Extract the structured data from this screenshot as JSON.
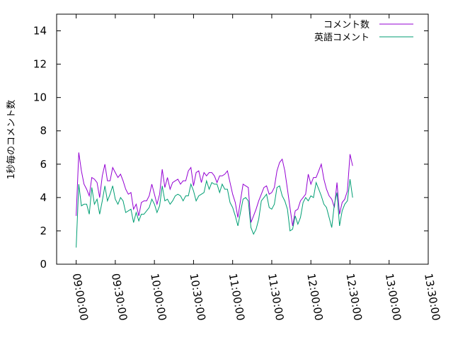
{
  "chart_data": {
    "type": "line",
    "ylabel": "1秒毎のコメント数",
    "xlabel": "",
    "ylim": [
      0,
      15
    ],
    "yticks": [
      0,
      2,
      4,
      6,
      8,
      10,
      12,
      14
    ],
    "x_range_seconds": [
      -900,
      16200
    ],
    "xticks": [
      {
        "t": 0,
        "label": "09:00:00"
      },
      {
        "t": 1800,
        "label": "09:30:00"
      },
      {
        "t": 3600,
        "label": "10:00:00"
      },
      {
        "t": 5400,
        "label": "10:30:00"
      },
      {
        "t": 7200,
        "label": "11:00:00"
      },
      {
        "t": 9000,
        "label": "11:30:00"
      },
      {
        "t": 10800,
        "label": "12:00:00"
      },
      {
        "t": 12600,
        "label": "12:30:00"
      },
      {
        "t": 14400,
        "label": "13:00:00"
      },
      {
        "t": 16200,
        "label": "13:30:00"
      }
    ],
    "grid": false,
    "legend_position": "top-right",
    "x_start": "09:00:00",
    "x_step_seconds": 120,
    "series": [
      {
        "name": "コメント数",
        "color": "#9400d3",
        "values": [
          2.9,
          6.7,
          5.6,
          4.8,
          4.5,
          4.1,
          5.2,
          5.1,
          4.9,
          4.0,
          5.3,
          6.0,
          5.0,
          5.0,
          5.8,
          5.5,
          5.2,
          5.4,
          5.0,
          4.5,
          4.2,
          4.3,
          3.3,
          3.6,
          2.9,
          3.7,
          3.8,
          3.8,
          4.1,
          4.8,
          4.2,
          3.6,
          4.2,
          5.7,
          4.6,
          5.2,
          4.5,
          4.9,
          5.0,
          5.1,
          4.8,
          5.0,
          5.0,
          5.6,
          5.8,
          4.7,
          5.5,
          5.6,
          4.9,
          5.5,
          5.3,
          5.5,
          5.5,
          5.3,
          4.9,
          5.3,
          5.3,
          5.4,
          5.6,
          4.9,
          4.2,
          3.7,
          2.8,
          3.8,
          4.8,
          4.7,
          4.6,
          2.5,
          2.9,
          3.3,
          3.8,
          4.2,
          4.6,
          4.7,
          4.2,
          4.3,
          4.6,
          5.6,
          6.1,
          6.3,
          5.6,
          4.5,
          3.4,
          2.3,
          3.2,
          3.3,
          3.8,
          4.0,
          4.2,
          5.4,
          4.8,
          5.2,
          5.2,
          5.6,
          6.0,
          5.1,
          4.5,
          4.1,
          3.9,
          3.4,
          4.9,
          3.0,
          3.7,
          3.9,
          4.4,
          6.6,
          5.9
        ]
      },
      {
        "name": "英語コメント",
        "color": "#009e73",
        "values": [
          1.0,
          4.8,
          3.5,
          3.6,
          3.6,
          3.0,
          4.6,
          3.6,
          3.9,
          3.0,
          3.8,
          4.7,
          3.8,
          4.2,
          4.7,
          3.9,
          3.6,
          4.0,
          3.8,
          3.1,
          3.2,
          3.3,
          2.5,
          3.1,
          2.6,
          3.0,
          3.0,
          3.2,
          3.4,
          3.9,
          3.6,
          3.1,
          3.5,
          4.7,
          3.8,
          3.9,
          3.6,
          3.8,
          4.1,
          4.2,
          4.1,
          3.8,
          4.1,
          4.1,
          4.8,
          4.4,
          3.8,
          4.1,
          4.2,
          4.3,
          5.0,
          4.5,
          4.9,
          4.8,
          4.8,
          4.3,
          4.8,
          4.5,
          4.5,
          3.7,
          3.4,
          2.9,
          2.3,
          3.1,
          3.9,
          4.0,
          3.8,
          2.2,
          1.8,
          2.1,
          2.7,
          3.8,
          4.0,
          4.2,
          3.4,
          3.3,
          3.6,
          4.6,
          4.7,
          4.1,
          3.8,
          3.3,
          2.0,
          2.1,
          2.9,
          2.4,
          2.8,
          3.7,
          4.0,
          3.8,
          4.1,
          4.0,
          4.9,
          4.5,
          4.1,
          3.6,
          3.4,
          2.8,
          2.2,
          3.6,
          4.3,
          2.3,
          3.2,
          3.6,
          3.8,
          5.1,
          4.0
        ]
      }
    ]
  }
}
